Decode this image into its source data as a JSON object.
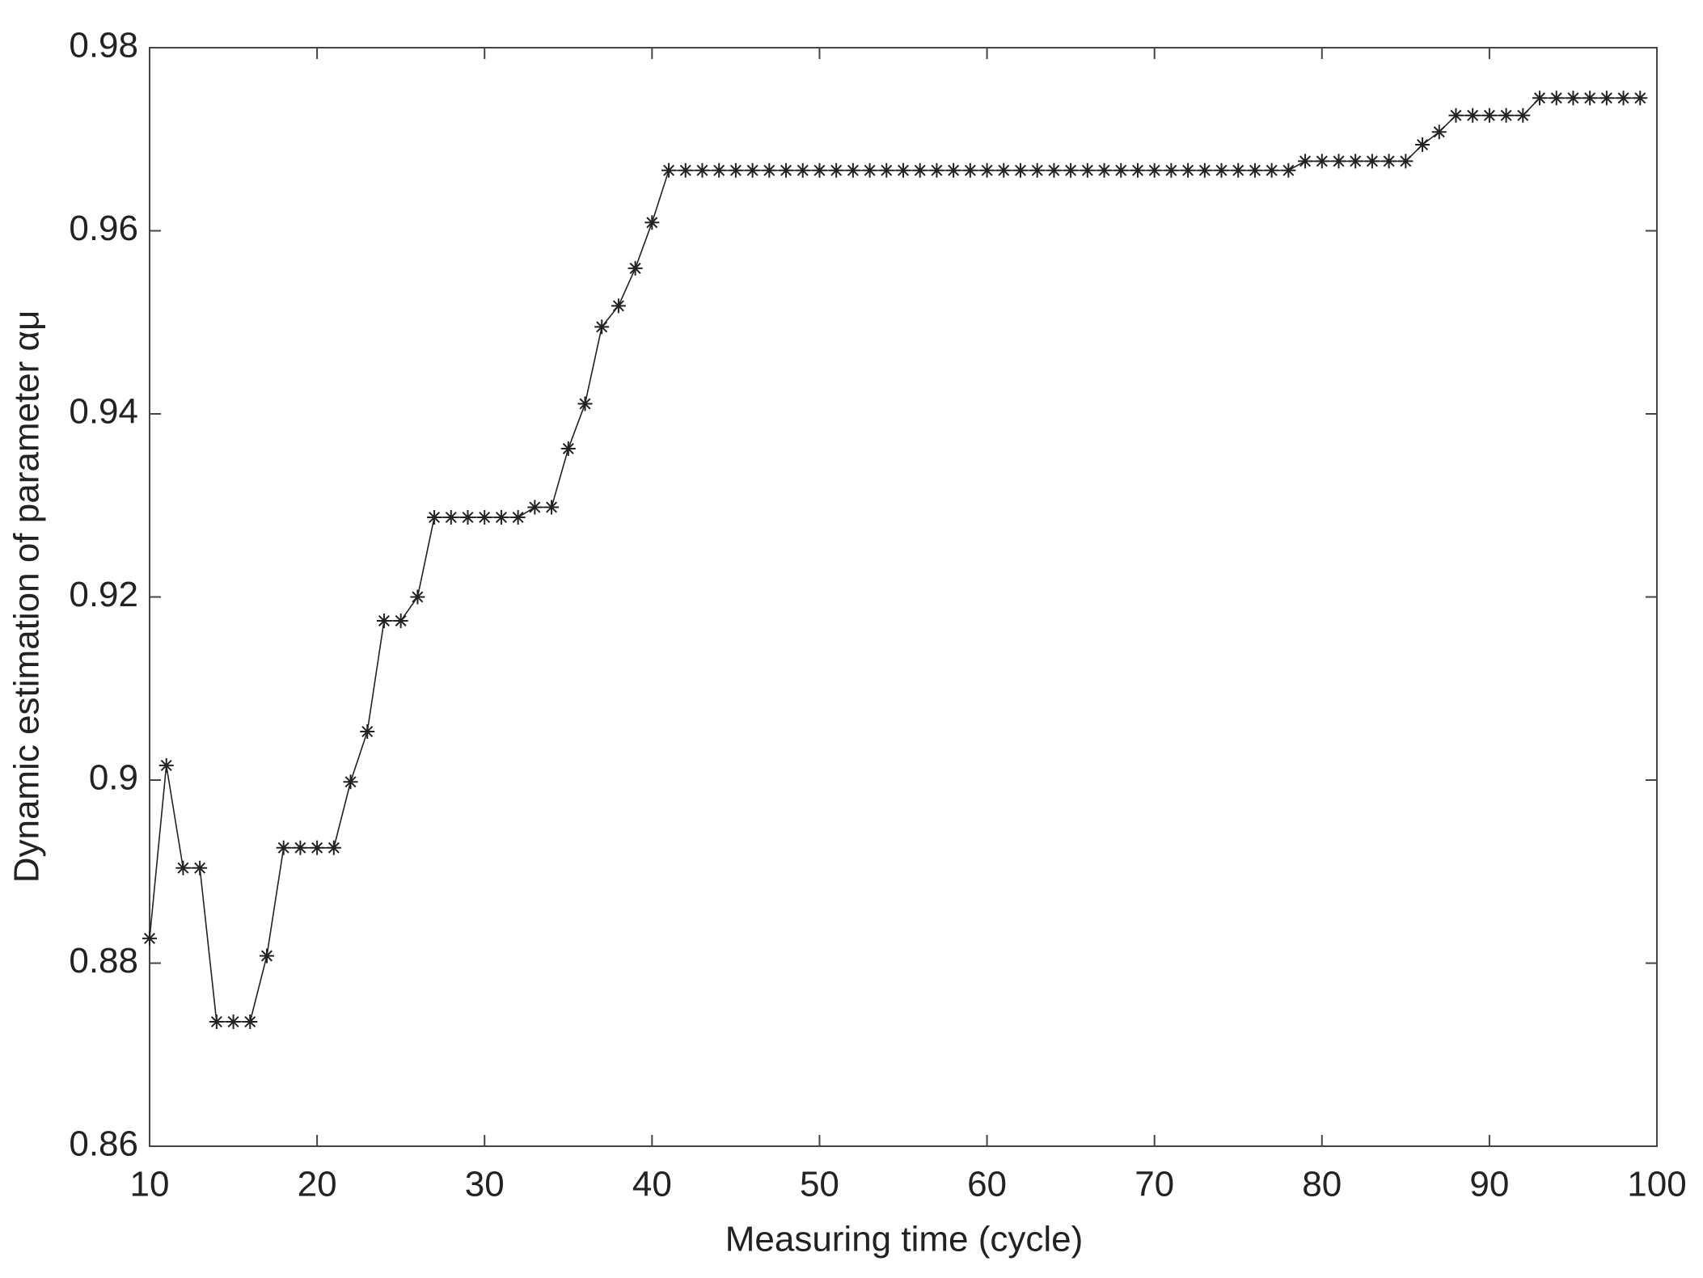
{
  "chart_data": {
    "type": "line",
    "xlabel": "Measuring time (cycle)",
    "ylabel": "Dynamic estimation of parameter αμ",
    "x": [
      10,
      11,
      12,
      13,
      14,
      15,
      16,
      17,
      18,
      19,
      20,
      21,
      22,
      23,
      24,
      25,
      26,
      27,
      28,
      29,
      30,
      31,
      32,
      33,
      34,
      35,
      36,
      37,
      38,
      39,
      40,
      41,
      42,
      43,
      44,
      45,
      46,
      47,
      48,
      49,
      50,
      51,
      52,
      53,
      54,
      55,
      56,
      57,
      58,
      59,
      60,
      61,
      62,
      63,
      64,
      65,
      66,
      67,
      68,
      69,
      70,
      71,
      72,
      73,
      74,
      75,
      76,
      77,
      78,
      79,
      80,
      81,
      82,
      83,
      84,
      85,
      86,
      87,
      88,
      89,
      90,
      91,
      92,
      93,
      94,
      95,
      96,
      97,
      98,
      99
    ],
    "values": [
      0.8827,
      0.9016,
      0.8904,
      0.8904,
      0.8736,
      0.8736,
      0.8736,
      0.8808,
      0.8926,
      0.8926,
      0.8926,
      0.8926,
      0.8998,
      0.9053,
      0.9174,
      0.9174,
      0.92,
      0.9287,
      0.9287,
      0.9287,
      0.9287,
      0.9287,
      0.9287,
      0.9298,
      0.9298,
      0.9362,
      0.9411,
      0.9495,
      0.9518,
      0.9559,
      0.9609,
      0.9666,
      0.9666,
      0.9666,
      0.9666,
      0.9666,
      0.9666,
      0.9666,
      0.9666,
      0.9666,
      0.9666,
      0.9666,
      0.9666,
      0.9666,
      0.9666,
      0.9666,
      0.9666,
      0.9666,
      0.9666,
      0.9666,
      0.9666,
      0.9666,
      0.9666,
      0.9666,
      0.9666,
      0.9666,
      0.9666,
      0.9666,
      0.9666,
      0.9666,
      0.9666,
      0.9666,
      0.9666,
      0.9666,
      0.9666,
      0.9666,
      0.9666,
      0.9666,
      0.9666,
      0.9676,
      0.9676,
      0.9676,
      0.9676,
      0.9676,
      0.9676,
      0.9676,
      0.9694,
      0.9708,
      0.9726,
      0.9726,
      0.9726,
      0.9726,
      0.9726,
      0.9745,
      0.9745,
      0.9745,
      0.9745,
      0.9745,
      0.9745,
      0.9745
    ],
    "color": "#222222",
    "marker": "asterisk",
    "xlim": [
      10,
      100
    ],
    "xticks": [
      10,
      20,
      30,
      40,
      50,
      60,
      70,
      80,
      90,
      100
    ],
    "ylim": [
      0.86,
      0.98
    ],
    "yticks": [
      0.86,
      0.88,
      0.9,
      0.92,
      0.94,
      0.96,
      0.98
    ],
    "grid": false
  }
}
